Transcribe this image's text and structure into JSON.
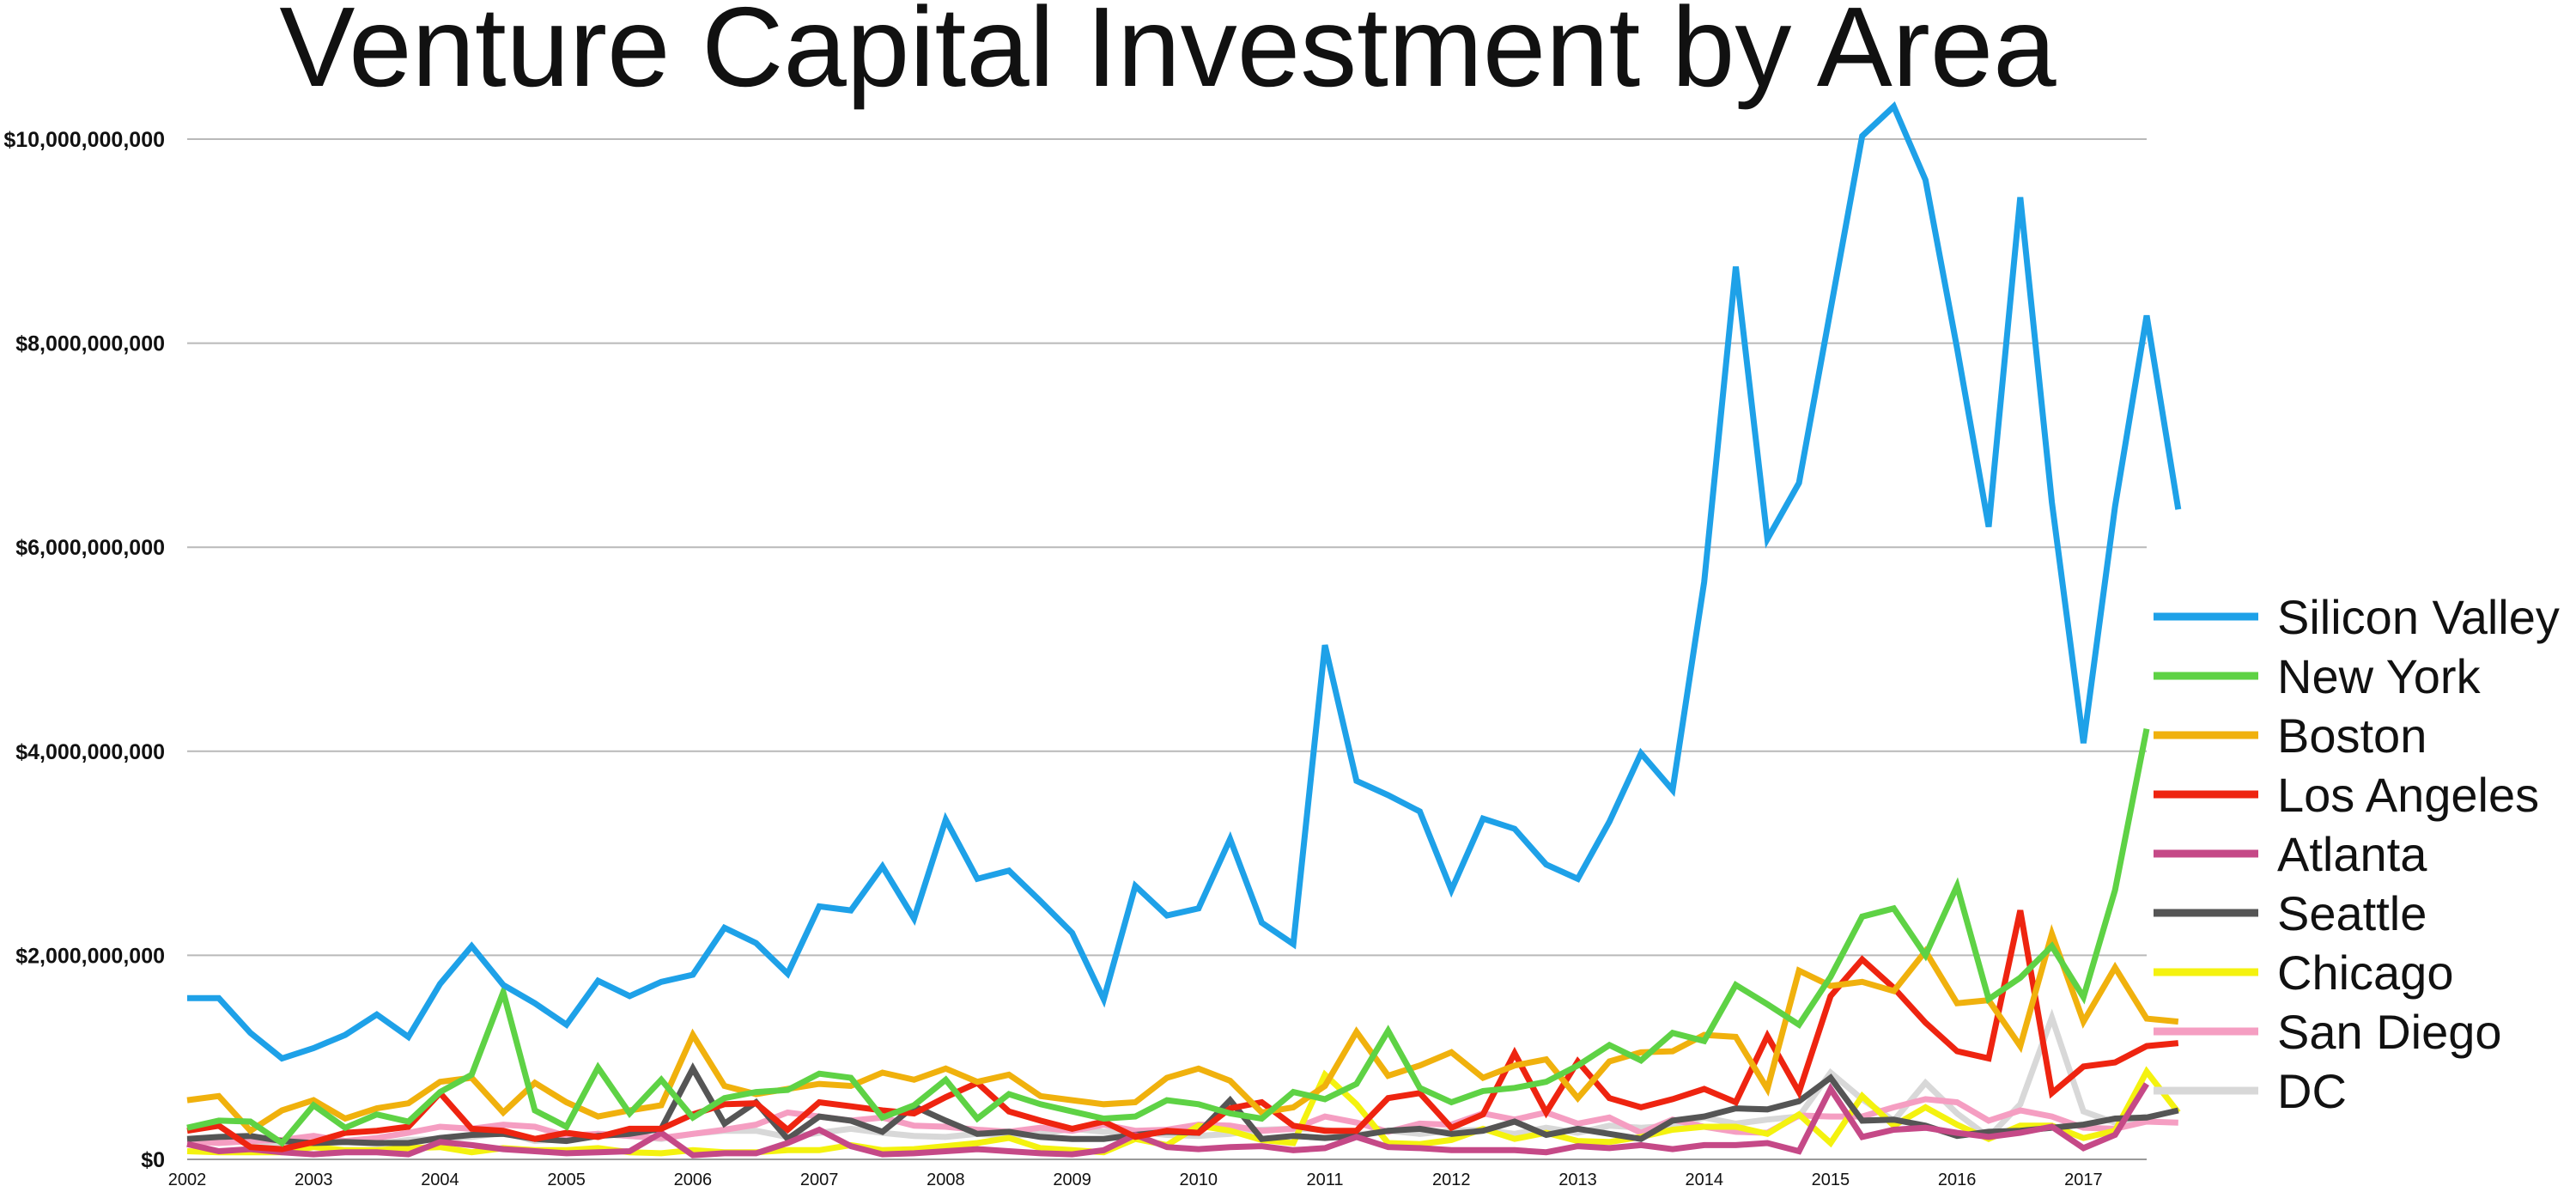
{
  "chart_data": {
    "type": "line",
    "title": "Venture Capital Investment by Area",
    "xlabel": "",
    "ylabel": "",
    "ylim": [
      0,
      10000000000
    ],
    "yticks": [
      0,
      2000000000,
      4000000000,
      6000000000,
      8000000000,
      10000000000
    ],
    "ytick_labels": [
      "$0",
      "$2,000,000,000",
      "$4,000,000,000",
      "$6,000,000,000",
      "$8,000,000,000",
      "$10,000,000,000"
    ],
    "xlim": [
      2002.0,
      2017.5
    ],
    "x_tick_labels": [
      "2002",
      "2003",
      "2004",
      "2005",
      "2006",
      "2007",
      "2008",
      "2009",
      "2010",
      "2011",
      "2012",
      "2013",
      "2014",
      "2015",
      "2016",
      "2017"
    ],
    "x_start_year": 2002,
    "periods_per_year": 4,
    "grid": true,
    "legend_position": "right",
    "series": [
      {
        "name": "Silicon Valley",
        "color": "#1ea1e8",
        "values": [
          1580,
          1580,
          1240,
          990,
          1090,
          1220,
          1420,
          1200,
          1720,
          2090,
          1710,
          1530,
          1320,
          1750,
          1600,
          1740,
          1810,
          2270,
          2120,
          1820,
          2480,
          2440,
          2870,
          2360,
          3330,
          2750,
          2830,
          2530,
          2220,
          1570,
          2680,
          2390,
          2460,
          3140,
          2320,
          2110,
          5040,
          3710,
          3570,
          3410,
          2640,
          3340,
          3240,
          2890,
          2750,
          3310,
          3980,
          3620,
          5660,
          8750,
          6080,
          6630,
          8330,
          10030,
          10320,
          9600,
          7950,
          6200,
          9430,
          6440,
          4080,
          6400,
          8270,
          6370
        ]
      },
      {
        "name": "New York",
        "color": "#5ed245",
        "values": [
          310,
          380,
          370,
          160,
          530,
          310,
          440,
          370,
          660,
          830,
          1640,
          480,
          320,
          900,
          450,
          780,
          410,
          600,
          660,
          680,
          840,
          800,
          410,
          530,
          780,
          400,
          640,
          540,
          470,
          400,
          420,
          580,
          540,
          450,
          400,
          660,
          590,
          740,
          1260,
          700,
          560,
          670,
          700,
          760,
          920,
          1120,
          970,
          1240,
          1160,
          1710,
          1520,
          1320,
          1790,
          2380,
          2460,
          2000,
          2680,
          1570,
          1780,
          2090,
          1590,
          2640,
          4220
        ]
      },
      {
        "name": "Boston",
        "color": "#f0b10d",
        "values": [
          580,
          620,
          280,
          480,
          580,
          400,
          500,
          550,
          760,
          800,
          460,
          750,
          560,
          420,
          480,
          530,
          1220,
          720,
          640,
          690,
          740,
          720,
          850,
          780,
          890,
          760,
          830,
          620,
          580,
          540,
          560,
          800,
          890,
          770,
          460,
          510,
          720,
          1250,
          820,
          920,
          1050,
          800,
          920,
          980,
          600,
          960,
          1050,
          1060,
          1220,
          1200,
          690,
          1850,
          1700,
          1740,
          1650,
          2040,
          1530,
          1560,
          1110,
          2210,
          1350,
          1880,
          1380,
          1350
        ]
      },
      {
        "name": "Los Angeles",
        "color": "#ee2410",
        "values": [
          280,
          330,
          120,
          100,
          170,
          260,
          280,
          320,
          650,
          300,
          280,
          200,
          260,
          220,
          300,
          300,
          440,
          540,
          550,
          290,
          560,
          520,
          480,
          450,
          610,
          750,
          470,
          380,
          300,
          370,
          220,
          280,
          260,
          500,
          560,
          330,
          280,
          280,
          600,
          650,
          310,
          440,
          1040,
          460,
          960,
          600,
          510,
          590,
          690,
          560,
          1210,
          660,
          1600,
          1960,
          1680,
          1340,
          1060,
          990,
          2440,
          650,
          910,
          950,
          1110,
          1140
        ]
      },
      {
        "name": "Atlanta",
        "color": "#c54987",
        "values": [
          150,
          80,
          100,
          70,
          50,
          70,
          70,
          50,
          170,
          140,
          100,
          80,
          60,
          70,
          80,
          260,
          40,
          60,
          60,
          160,
          290,
          130,
          50,
          60,
          80,
          100,
          80,
          60,
          50,
          90,
          240,
          120,
          100,
          120,
          130,
          90,
          110,
          220,
          120,
          110,
          90,
          90,
          90,
          70,
          130,
          110,
          140,
          100,
          140,
          140,
          160,
          80,
          690,
          220,
          290,
          310,
          260,
          220,
          260,
          320,
          110,
          240,
          740
        ]
      },
      {
        "name": "Seattle",
        "color": "#555555",
        "values": [
          200,
          220,
          230,
          180,
          160,
          170,
          160,
          160,
          210,
          240,
          250,
          200,
          180,
          230,
          250,
          300,
          890,
          350,
          560,
          200,
          420,
          380,
          270,
          520,
          380,
          250,
          270,
          220,
          200,
          200,
          240,
          270,
          260,
          580,
          200,
          230,
          210,
          230,
          280,
          300,
          250,
          280,
          370,
          240,
          300,
          250,
          200,
          380,
          420,
          500,
          490,
          570,
          800,
          380,
          390,
          330,
          230,
          270,
          280,
          310,
          340,
          400,
          410,
          480
        ]
      },
      {
        "name": "Chicago",
        "color": "#f4f20f",
        "values": [
          80,
          70,
          70,
          70,
          120,
          90,
          90,
          110,
          120,
          70,
          110,
          90,
          90,
          110,
          70,
          60,
          90,
          70,
          70,
          90,
          90,
          140,
          90,
          100,
          130,
          160,
          210,
          110,
          90,
          70,
          200,
          140,
          330,
          280,
          190,
          160,
          830,
          540,
          160,
          150,
          190,
          300,
          200,
          260,
          180,
          170,
          220,
          290,
          320,
          320,
          250,
          440,
          160,
          620,
          330,
          510,
          340,
          200,
          330,
          330,
          210,
          280,
          860,
          460
        ]
      },
      {
        "name": "San Diego",
        "color": "#f59ec2",
        "values": [
          180,
          160,
          180,
          190,
          230,
          180,
          210,
          260,
          320,
          300,
          340,
          320,
          230,
          250,
          230,
          210,
          250,
          290,
          340,
          460,
          420,
          380,
          410,
          330,
          320,
          290,
          270,
          310,
          280,
          340,
          280,
          290,
          340,
          330,
          280,
          300,
          420,
          360,
          270,
          350,
          340,
          450,
          390,
          460,
          350,
          410,
          260,
          390,
          320,
          270,
          260,
          430,
          420,
          420,
          510,
          590,
          560,
          380,
          480,
          420,
          310,
          300,
          370,
          360
        ]
      },
      {
        "name": "DC",
        "color": "#d8d8d8",
        "values": [
          180,
          220,
          150,
          140,
          160,
          170,
          150,
          190,
          200,
          220,
          260,
          180,
          200,
          250,
          230,
          200,
          250,
          280,
          280,
          220,
          260,
          300,
          260,
          230,
          220,
          250,
          230,
          250,
          300,
          270,
          270,
          240,
          230,
          250,
          290,
          300,
          290,
          240,
          280,
          250,
          280,
          290,
          250,
          310,
          260,
          330,
          310,
          330,
          410,
          350,
          390,
          420,
          850,
          590,
          380,
          750,
          450,
          220,
          540,
          1390,
          470,
          360,
          420
        ]
      }
    ]
  }
}
